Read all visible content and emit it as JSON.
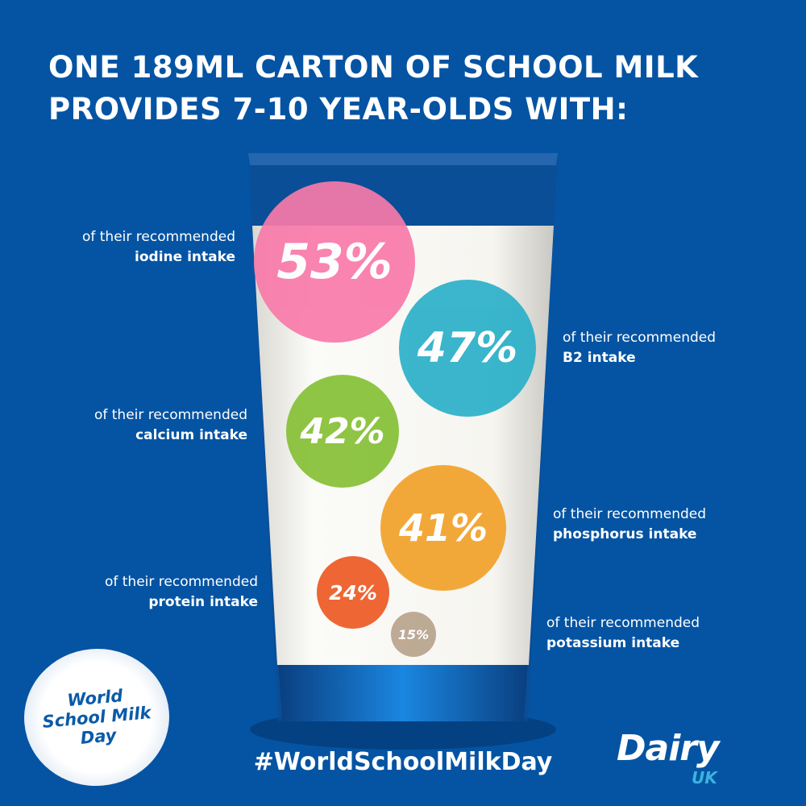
{
  "title": {
    "line1": "ONE 189ML CARTON OF SCHOOL MILK",
    "line2": "PROVIDES 7-10 YEAR-OLDS WITH:"
  },
  "nutrients": [
    {
      "percent": "53%",
      "prefix": "of their recommended",
      "name": "iodine intake",
      "color": "#f97aa9"
    },
    {
      "percent": "47%",
      "prefix": "of their recommended",
      "name": "B2 intake",
      "color": "#2ab0c9"
    },
    {
      "percent": "42%",
      "prefix": "of their recommended",
      "name": "calcium intake",
      "color": "#86c035"
    },
    {
      "percent": "41%",
      "prefix": "of their recommended",
      "name": "phosphorus intake",
      "color": "#f2a22a"
    },
    {
      "percent": "24%",
      "prefix": "of their recommended",
      "name": "protein intake",
      "color": "#ec5a24"
    },
    {
      "percent": "15%",
      "prefix": "of their recommended",
      "name": "potassium intake",
      "color": "#b9a48d"
    }
  ],
  "hashtag": "#WorldSchoolMilkDay",
  "badge": {
    "line1": "World",
    "line2": "School Milk",
    "line3": "Day"
  },
  "logo": {
    "main": "Dairy",
    "sub": "UK"
  },
  "colors": {
    "background": "#0554a3",
    "milk": "#f4f3ee"
  }
}
